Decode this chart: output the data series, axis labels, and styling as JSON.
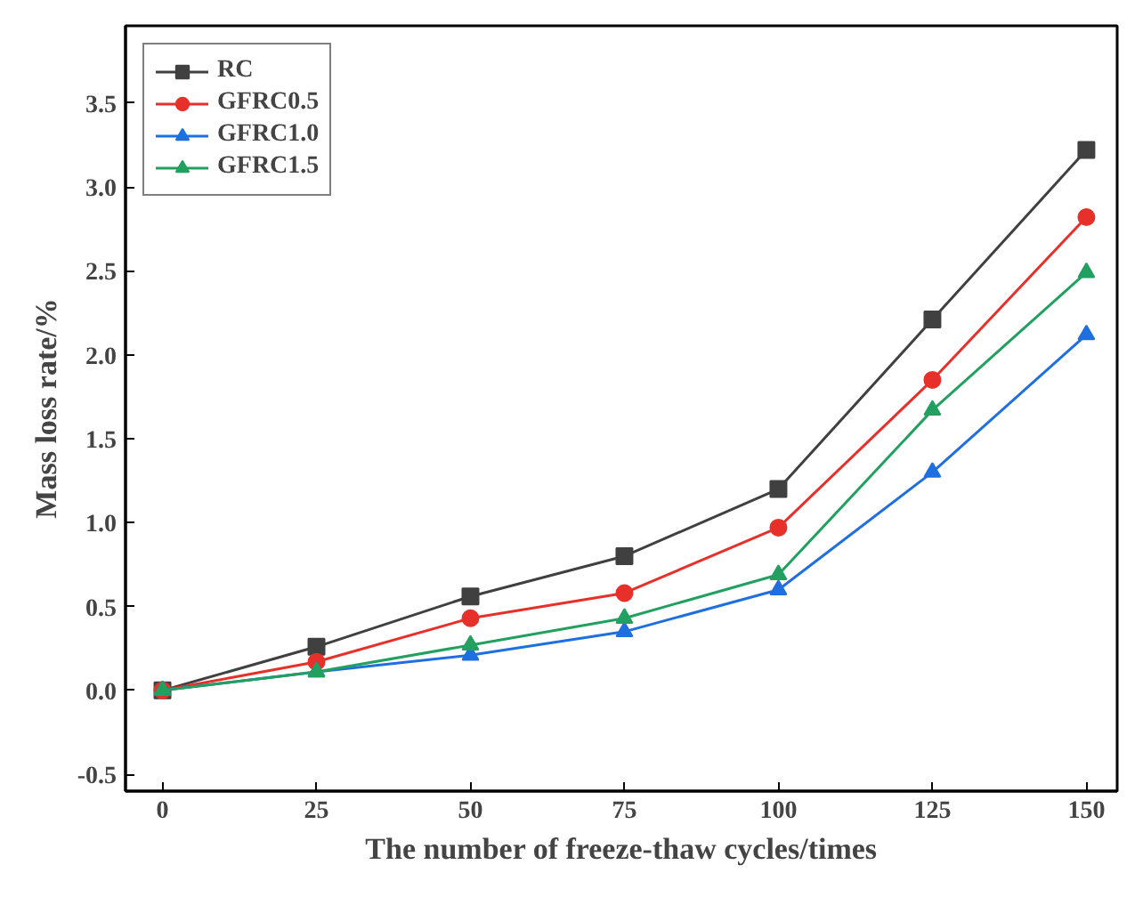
{
  "chart_data": {
    "type": "line",
    "xlabel": "The number of freeze-thaw cycles/times",
    "ylabel": "Mass loss rate/%",
    "x": [
      0,
      25,
      50,
      75,
      100,
      125,
      150
    ],
    "xlim": [
      -6,
      155
    ],
    "xticks": [
      0,
      25,
      50,
      75,
      100,
      125,
      150
    ],
    "ylim": [
      -0.6,
      3.96
    ],
    "yticks": [
      {
        "value": -0.5,
        "label": "-0.5"
      },
      {
        "value": 0,
        "label": "0.0"
      },
      {
        "value": 0.5,
        "label": "0.5"
      },
      {
        "value": 1,
        "label": "1.0"
      },
      {
        "value": 1.5,
        "label": "1.5"
      },
      {
        "value": 2,
        "label": "2.0"
      },
      {
        "value": 2.5,
        "label": "2.5"
      },
      {
        "value": 3,
        "label": "3.0"
      },
      {
        "value": 3.5,
        "label": "3.5"
      }
    ],
    "grid": false,
    "legend": "top left",
    "line_style": "solid",
    "series": [
      {
        "name": "RC",
        "color": "#404040",
        "marker": "square",
        "values": [
          0,
          0.26,
          0.56,
          0.8,
          1.2,
          2.21,
          3.22
        ]
      },
      {
        "name": "GFRC0.5",
        "color": "#e8302a",
        "marker": "circle",
        "values": [
          0,
          0.17,
          0.43,
          0.58,
          0.97,
          1.85,
          2.82
        ]
      },
      {
        "name": "GFRC1.0",
        "color": "#1f6fe0",
        "marker": "triangle",
        "values": [
          0,
          0.11,
          0.21,
          0.35,
          0.6,
          1.3,
          2.12
        ]
      },
      {
        "name": "GFRC1.5",
        "color": "#22a060",
        "marker": "triangle",
        "values": [
          0,
          0.11,
          0.27,
          0.43,
          0.69,
          1.67,
          2.49
        ]
      }
    ]
  }
}
